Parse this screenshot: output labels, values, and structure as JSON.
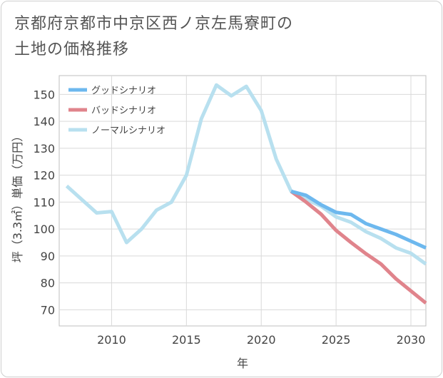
{
  "title_line1": "京都府京都市中京区西ノ京左馬寮町の",
  "title_line2": "土地の価格推移",
  "chart_data": {
    "type": "line",
    "title": "京都府京都市中京区西ノ京左馬寮町の土地の価格推移",
    "xlabel": "年",
    "ylabel": "坪（3.3㎡）単価（万円）",
    "xlim": [
      2006.5,
      2031
    ],
    "ylim": [
      64,
      157
    ],
    "xticks": [
      2010,
      2015,
      2020,
      2025,
      2030
    ],
    "yticks": [
      70,
      80,
      90,
      100,
      110,
      120,
      130,
      140,
      150
    ],
    "grid": true,
    "legend_position": "top-left",
    "series": [
      {
        "name": "グッドシナリオ",
        "color": "#6db8ee",
        "x": [
          2022,
          2023,
          2024,
          2025,
          2026,
          2027,
          2028,
          2029,
          2030,
          2031
        ],
        "y": [
          114,
          112.5,
          109,
          106.2,
          105.4,
          102,
          100,
          98,
          95.5,
          93
        ]
      },
      {
        "name": "バッドシナリオ",
        "color": "#e0848c",
        "x": [
          2022,
          2023,
          2024,
          2025,
          2026,
          2027,
          2028,
          2029,
          2030,
          2031
        ],
        "y": [
          114,
          110,
          105.5,
          99.5,
          95,
          90.8,
          87,
          81.5,
          77,
          72.5
        ]
      },
      {
        "name": "ノーマルシナリオ",
        "color": "#b8e0ef",
        "x": [
          2007,
          2008,
          2009,
          2010,
          2011,
          2012,
          2013,
          2014,
          2015,
          2016,
          2017,
          2018,
          2019,
          2020,
          2021,
          2022,
          2023,
          2024,
          2025,
          2026,
          2027,
          2028,
          2029,
          2030,
          2031
        ],
        "y": [
          116,
          111,
          106,
          106.5,
          95,
          100,
          107,
          110,
          120,
          141,
          153.5,
          149.5,
          153,
          144,
          126,
          114,
          111,
          108.5,
          104.5,
          102.5,
          99,
          96.5,
          93,
          91,
          87
        ]
      }
    ]
  }
}
